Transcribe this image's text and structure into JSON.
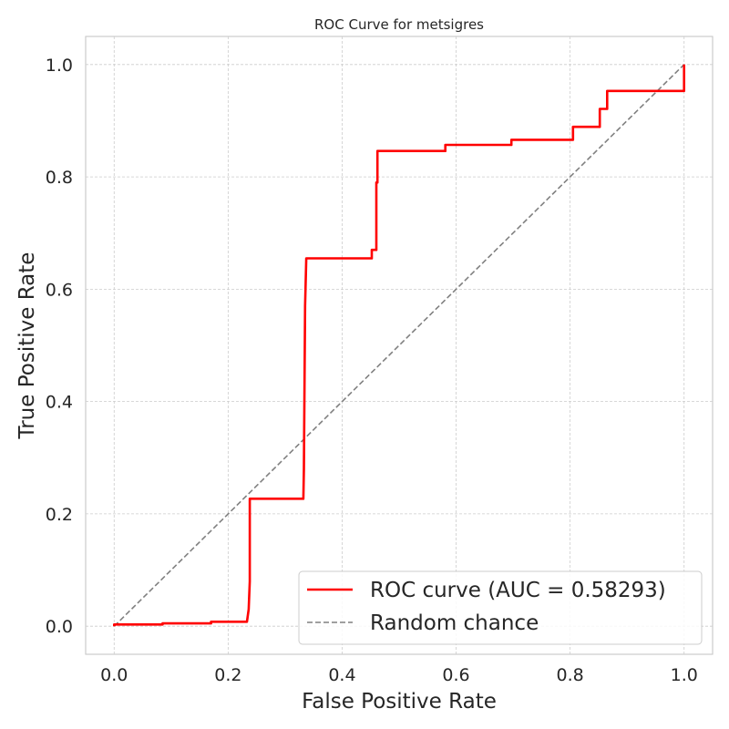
{
  "chart_data": {
    "type": "line",
    "title": "ROC Curve for metsigres",
    "xlabel": "False Positive Rate",
    "ylabel": "True Positive Rate",
    "xlim": [
      -0.05,
      1.05
    ],
    "ylim": [
      -0.05,
      1.05
    ],
    "x_ticks": [
      "0.0",
      "0.2",
      "0.4",
      "0.6",
      "0.8",
      "1.0"
    ],
    "y_ticks": [
      "0.0",
      "0.2",
      "0.4",
      "0.6",
      "0.8",
      "1.0"
    ],
    "grid": true,
    "legend_position": "lower-right",
    "series": [
      {
        "name": "ROC curve (AUC = 0.58293)",
        "color": "#ff0000",
        "style": "solid",
        "x": [
          0.0,
          0.0,
          0.085,
          0.085,
          0.17,
          0.17,
          0.233,
          0.236,
          0.238,
          0.238,
          0.332,
          0.333,
          0.335,
          0.337,
          0.452,
          0.452,
          0.46,
          0.46,
          0.462,
          0.462,
          0.581,
          0.581,
          0.697,
          0.697,
          0.805,
          0.805,
          0.852,
          0.852,
          0.865,
          0.865,
          1.0,
          1.0
        ],
        "y": [
          0.0,
          0.003,
          0.003,
          0.005,
          0.005,
          0.008,
          0.008,
          0.03,
          0.08,
          0.227,
          0.227,
          0.28,
          0.57,
          0.655,
          0.655,
          0.67,
          0.67,
          0.79,
          0.79,
          0.846,
          0.846,
          0.857,
          0.857,
          0.866,
          0.866,
          0.889,
          0.889,
          0.921,
          0.921,
          0.953,
          0.953,
          1.0
        ]
      },
      {
        "name": "Random chance",
        "color": "#808080",
        "style": "dashed",
        "x": [
          0.0,
          1.0
        ],
        "y": [
          0.0,
          1.0
        ]
      }
    ]
  }
}
